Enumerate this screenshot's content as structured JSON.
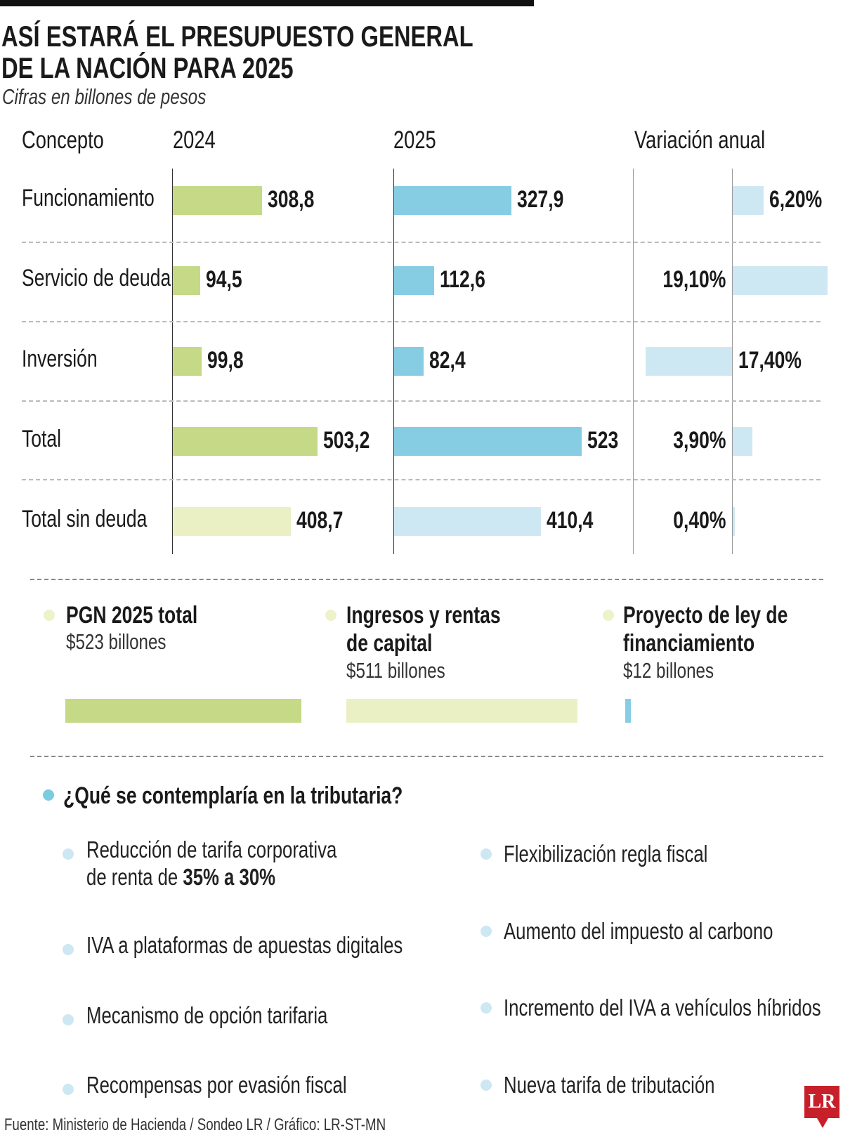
{
  "header": {
    "title_line1": "ASÍ ESTARÁ EL PRESUPUESTO GENERAL",
    "title_line2": "DE LA NACIÓN PARA 2025",
    "subtitle": "Cifras en billones de pesos"
  },
  "chart_data": {
    "type": "bar",
    "title": "ASÍ ESTARÁ EL PRESUPUESTO GENERAL DE LA NACIÓN PARA 2025",
    "subtitle": "Cifras en billones de pesos",
    "column_headers": [
      "Concepto",
      "2024",
      "2025",
      "Variación anual"
    ],
    "categories": [
      "Funcionamiento",
      "Servicio de deuda",
      "Inversión",
      "Total",
      "Total sin deuda"
    ],
    "series": [
      {
        "name": "2024",
        "values": [
          308.8,
          94.5,
          99.8,
          503.2,
          408.7
        ],
        "labels": [
          "308,8",
          "94,5",
          "99,8",
          "503,2",
          "408,7"
        ]
      },
      {
        "name": "2025",
        "values": [
          327.9,
          112.6,
          82.4,
          523,
          410.4
        ],
        "labels": [
          "327,9",
          "112,6",
          "82,4",
          "523",
          "410,4"
        ]
      },
      {
        "name": "Variación anual",
        "values": [
          6.2,
          19.1,
          -17.4,
          3.9,
          0.4
        ],
        "labels": [
          "6,20%",
          "19,10%",
          "17,40%",
          "3,90%",
          "0,40%"
        ]
      }
    ],
    "colors": {
      "c2024": "#c5d987",
      "c2024_light": "#eaf0c4",
      "c2025": "#86cde3",
      "c2025_light": "#cde8f2",
      "variation": "#cde8f2"
    },
    "grid": false
  },
  "summary": [
    {
      "title_line1": "PGN 2025 total",
      "title_line2": "",
      "value_label": "$523 billones",
      "value": 523,
      "color": "#c5d987"
    },
    {
      "title_line1": "Ingresos y rentas",
      "title_line2": "de capital",
      "value_label": "$511 billones",
      "value": 511,
      "color": "#eaf0c4"
    },
    {
      "title_line1": "Proyecto de ley de",
      "title_line2": "financiamiento",
      "value_label": "$12 billones",
      "value": 12,
      "color": "#86cde3"
    }
  ],
  "tributaria": {
    "question": "¿Qué se contemplaría en la tributaria?",
    "left_items": [
      {
        "line1": "Reducción de tarifa corporativa",
        "line2_prefix": "de renta de ",
        "line2_bold": "35% a 30%"
      },
      {
        "line1": "IVA a plataformas de apuestas digitales"
      },
      {
        "line1": "Mecanismo de opción tarifaria"
      },
      {
        "line1": "Recompensas por evasión fiscal"
      }
    ],
    "right_items": [
      {
        "line1": "Flexibilización regla fiscal"
      },
      {
        "line1": "Aumento del impuesto al carbono"
      },
      {
        "line1": "Incremento del IVA a vehículos híbridos"
      },
      {
        "line1": "Nueva tarifa de tributación"
      }
    ]
  },
  "footer": {
    "source": "Fuente: Ministerio de Hacienda / Sondeo LR / Gráfico: LR-ST-MN",
    "logo": "LR"
  }
}
